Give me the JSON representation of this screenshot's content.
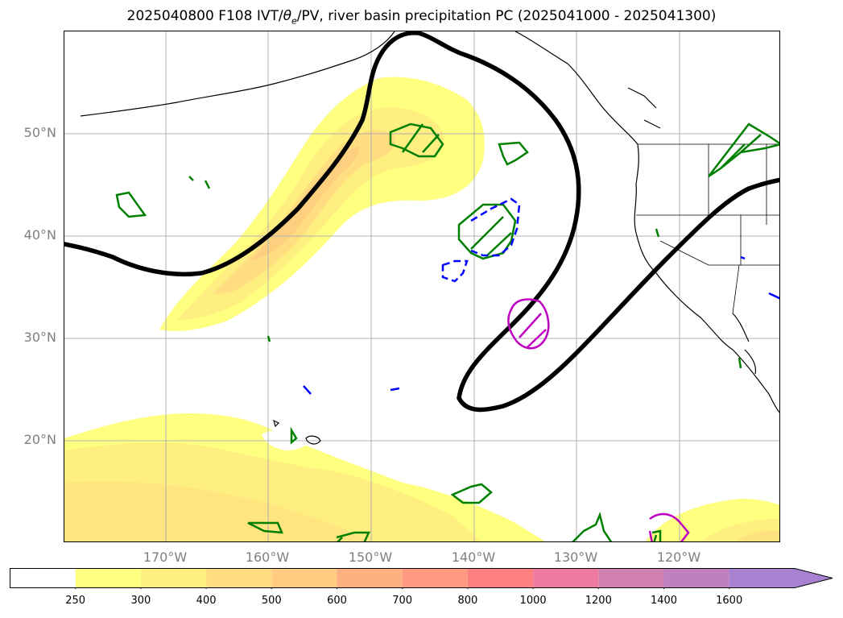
{
  "title": {
    "prefix": "2025040800 F108 IVT/",
    "theta_symbol": "θ",
    "theta_sub": "e",
    "suffix": "/PV, river basin precipitation PC (2025041000 - 2025041300)"
  },
  "lat_labels": [
    "50°N",
    "40°N",
    "30°N",
    "20°N"
  ],
  "lon_labels": [
    "170°W",
    "160°W",
    "150°W",
    "140°W",
    "130°W",
    "120°W"
  ],
  "colorbar": {
    "ticks": [
      "250",
      "300",
      "400",
      "500",
      "600",
      "700",
      "800",
      "1000",
      "1200",
      "1400",
      "1600"
    ],
    "colors": [
      "#ffffff",
      "#ffff80",
      "#ffee80",
      "#ffdd80",
      "#ffcc80",
      "#ffb080",
      "#ff9980",
      "#ff8080",
      "#ee7aa0",
      "#d080b0",
      "#c080c0",
      "#a882d0"
    ],
    "extend": "max"
  },
  "colors": {
    "pv_contour": "#000000",
    "precip_positive": "#008000",
    "precip_negative": "#0000ff",
    "precip_high": "#c000c0",
    "grid": "#b0b0b0",
    "label": "#7f7f7f"
  }
}
